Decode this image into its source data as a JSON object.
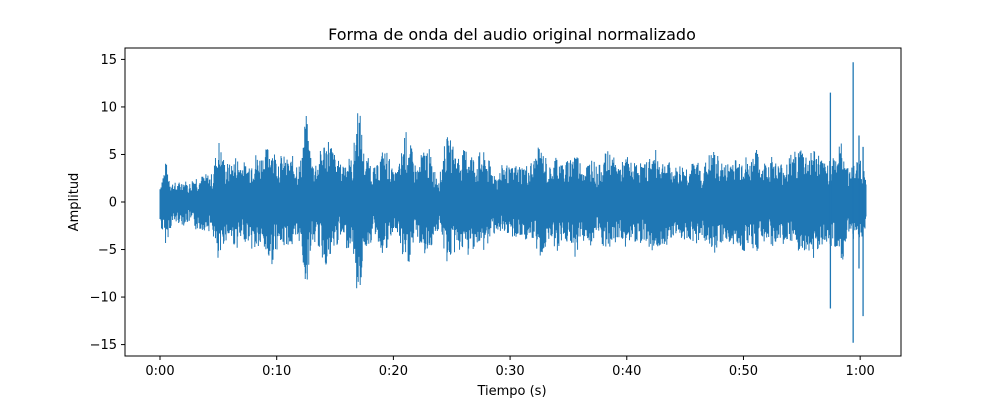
{
  "chart_data": {
    "type": "line",
    "title": "Forma de onda del audio original normalizado",
    "xlabel": "Tiempo (s)",
    "ylabel": "Amplitud",
    "xlim": [
      -3.0,
      63.5
    ],
    "ylim": [
      -16.2,
      16.2
    ],
    "x_tick_values": [
      0,
      10,
      20,
      30,
      40,
      50,
      60
    ],
    "x_ticks": [
      "0:00",
      "0:10",
      "0:20",
      "0:30",
      "0:40",
      "0:50",
      "1:00"
    ],
    "y_tick_values": [
      -15,
      -10,
      -5,
      0,
      5,
      10,
      15
    ],
    "y_ticks": [
      "−15",
      "−10",
      "−5",
      "0",
      "5",
      "10",
      "15"
    ],
    "grid": false,
    "line_color": "#1f77b4",
    "series": [
      {
        "x": [
          0,
          0.5,
          1,
          1.5,
          2,
          2.5,
          3,
          3.5,
          4,
          4.5,
          5,
          5.5,
          6,
          6.5,
          7,
          7.5,
          8,
          8.5,
          9,
          9.5,
          10,
          10.5,
          11,
          11.5,
          12,
          12.5,
          13,
          13.5,
          14,
          14.5,
          15,
          15.5,
          16,
          16.5,
          17,
          17.5,
          18,
          18.5,
          19,
          19.5,
          20,
          20.5,
          21,
          21.5,
          22,
          22.5,
          23,
          23.5,
          24,
          24.5,
          25,
          25.5,
          26,
          26.5,
          27,
          27.5,
          28,
          28.5,
          29,
          29.5,
          30,
          30.5,
          31,
          31.5,
          32,
          32.5,
          33,
          33.5,
          34,
          34.5,
          35,
          35.5,
          36,
          36.5,
          37,
          37.5,
          38,
          38.5,
          39,
          39.5,
          40,
          40.5,
          41,
          41.5,
          42,
          42.5,
          43,
          43.5,
          44,
          44.5,
          45,
          45.5,
          46,
          46.5,
          47,
          47.5,
          48,
          48.5,
          49,
          49.5,
          50,
          50.5,
          51,
          51.5,
          52,
          52.5,
          53,
          53.5,
          54,
          54.5,
          55,
          55.5,
          56,
          56.5,
          57,
          57.5,
          58,
          58.5,
          59,
          59.5,
          60,
          60.5
        ],
        "max": [
          2.0,
          4.3,
          2.2,
          2.0,
          2.5,
          2.0,
          3.0,
          2.8,
          3.0,
          3.0,
          6.9,
          4.5,
          4.0,
          5.0,
          4.5,
          4.0,
          5.5,
          5.0,
          5.5,
          6.5,
          5.0,
          5.0,
          4.5,
          5.0,
          4.0,
          9.5,
          4.5,
          4.5,
          6.5,
          7.0,
          5.0,
          4.0,
          5.0,
          4.5,
          11.3,
          5.0,
          4.5,
          3.5,
          5.5,
          5.5,
          3.0,
          4.0,
          7.8,
          6.0,
          3.5,
          5.5,
          6.0,
          3.5,
          3.0,
          7.0,
          6.5,
          5.0,
          5.5,
          6.0,
          4.5,
          5.5,
          5.0,
          3.5,
          3.0,
          4.5,
          3.5,
          4.0,
          4.0,
          4.0,
          4.5,
          6.0,
          5.0,
          3.5,
          5.5,
          4.0,
          4.5,
          6.0,
          4.5,
          4.0,
          5.0,
          3.5,
          5.0,
          5.5,
          4.5,
          4.0,
          5.0,
          4.0,
          4.5,
          4.0,
          5.0,
          5.5,
          4.5,
          4.5,
          3.5,
          4.0,
          4.0,
          4.0,
          4.5,
          3.5,
          5.0,
          5.5,
          4.5,
          4.0,
          5.0,
          4.5,
          5.5,
          4.0,
          6.0,
          4.0,
          4.5,
          5.0,
          4.0,
          4.5,
          5.0,
          5.5,
          6.0,
          5.0,
          6.0,
          5.0,
          4.0,
          5.0,
          5.5,
          6.5,
          3.5,
          4.0,
          5.0,
          2.5
        ],
        "min": [
          -2.5,
          -4.5,
          -2.5,
          -2.2,
          -2.5,
          -2.2,
          -3.0,
          -3.0,
          -3.0,
          -3.2,
          -7.3,
          -4.2,
          -4.0,
          -5.0,
          -4.5,
          -4.0,
          -5.5,
          -5.0,
          -5.5,
          -7.0,
          -5.0,
          -5.0,
          -4.5,
          -5.5,
          -4.0,
          -9.4,
          -4.5,
          -4.5,
          -6.5,
          -7.0,
          -5.0,
          -4.0,
          -5.0,
          -4.5,
          -11.5,
          -5.0,
          -4.5,
          -3.5,
          -5.5,
          -5.5,
          -3.0,
          -4.0,
          -7.8,
          -6.0,
          -3.5,
          -5.5,
          -6.0,
          -3.5,
          -3.0,
          -6.5,
          -6.0,
          -5.0,
          -5.5,
          -6.0,
          -4.5,
          -5.5,
          -5.0,
          -3.5,
          -3.0,
          -4.5,
          -3.5,
          -4.0,
          -4.0,
          -4.0,
          -4.5,
          -6.0,
          -5.0,
          -3.5,
          -5.5,
          -4.0,
          -4.5,
          -6.0,
          -4.5,
          -4.0,
          -5.0,
          -3.5,
          -5.0,
          -5.5,
          -4.5,
          -4.0,
          -5.0,
          -4.0,
          -4.5,
          -4.0,
          -5.0,
          -5.5,
          -4.5,
          -4.5,
          -3.5,
          -4.0,
          -4.0,
          -4.0,
          -4.5,
          -3.5,
          -5.0,
          -5.5,
          -4.5,
          -4.0,
          -5.0,
          -4.5,
          -5.5,
          -4.0,
          -6.0,
          -4.0,
          -4.5,
          -5.0,
          -4.0,
          -4.5,
          -5.0,
          -5.5,
          -6.0,
          -5.0,
          -6.0,
          -5.0,
          -4.0,
          -5.0,
          -5.5,
          -6.5,
          -3.5,
          -4.0,
          -5.0,
          -2.5
        ]
      }
    ],
    "peaks": [
      {
        "x": 57.45,
        "max": 11.5,
        "min": -11.2
      },
      {
        "x": 59.4,
        "max": 14.7,
        "min": -14.8
      },
      {
        "x": 59.9,
        "max": 7.0,
        "min": -7.0
      },
      {
        "x": 60.25,
        "max": 5.8,
        "min": -12.0
      }
    ]
  }
}
